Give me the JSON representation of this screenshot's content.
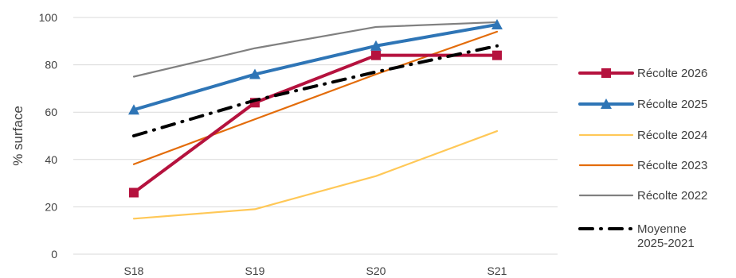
{
  "chart_data": {
    "type": "line",
    "title": "",
    "xlabel": "",
    "ylabel": "% surface",
    "categories": [
      "S18",
      "S19",
      "S20",
      "S21"
    ],
    "ylim": [
      0,
      100
    ],
    "yticks": [
      0,
      20,
      40,
      60,
      80,
      100
    ],
    "grid": "horizontal",
    "legend_position": "right",
    "series": [
      {
        "name": "Récolte 2026",
        "values": [
          26,
          64,
          84,
          84
        ],
        "color": "#b5123e",
        "marker": "square",
        "style": "solid",
        "weight": "bold"
      },
      {
        "name": "Récolte 2025",
        "values": [
          61,
          76,
          88,
          97
        ],
        "color": "#2e75b6",
        "marker": "triangle",
        "style": "solid",
        "weight": "bold"
      },
      {
        "name": "Récolte 2024",
        "values": [
          15,
          19,
          33,
          52
        ],
        "color": "#ffc857",
        "marker": "none",
        "style": "solid",
        "weight": "thin"
      },
      {
        "name": "Récolte 2023",
        "values": [
          38,
          57,
          76,
          94
        ],
        "color": "#e36c0a",
        "marker": "none",
        "style": "solid",
        "weight": "thin"
      },
      {
        "name": "Récolte 2022",
        "values": [
          75,
          87,
          96,
          98
        ],
        "color": "#808080",
        "marker": "none",
        "style": "solid",
        "weight": "thin"
      },
      {
        "name_lines": [
          "Moyenne",
          "2025-2021"
        ],
        "values": [
          50,
          65,
          77,
          88
        ],
        "color": "#000000",
        "marker": "none",
        "style": "dash-dot",
        "weight": "bold"
      }
    ]
  }
}
